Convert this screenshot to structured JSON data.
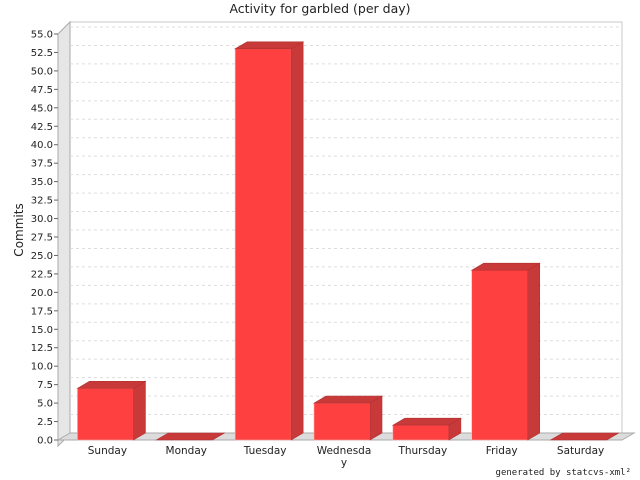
{
  "chart_data": {
    "type": "bar",
    "title": "Activity for garbled (per day)",
    "xlabel": "",
    "ylabel": "Commits",
    "categories": [
      "Sunday",
      "Monday",
      "Tuesday",
      "Wednesday",
      "Thursday",
      "Friday",
      "Saturday"
    ],
    "category_display": [
      [
        "Sunday"
      ],
      [
        "Monday"
      ],
      [
        "Tuesday"
      ],
      [
        "Wednesda",
        "y"
      ],
      [
        "Thursday"
      ],
      [
        "Friday"
      ],
      [
        "Saturday"
      ]
    ],
    "values": [
      7,
      0,
      53,
      5,
      2,
      23,
      0
    ],
    "ylim": [
      0,
      55
    ],
    "ytick_step": 2.5,
    "grid": true,
    "bar_color": "#ff4040",
    "legend": "none"
  },
  "footer": {
    "credit": "generated by statcvs-xml²"
  }
}
